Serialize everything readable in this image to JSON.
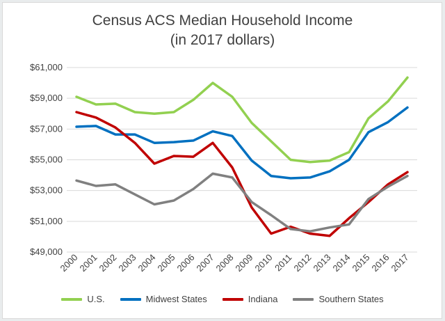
{
  "chart_data": {
    "type": "line",
    "title": "Census ACS Median Household Income",
    "subtitle": "(in 2017 dollars)",
    "xlabel": "",
    "ylabel": "",
    "categories": [
      "2000",
      "2001",
      "2002",
      "2003",
      "2004",
      "2005",
      "2006",
      "2007",
      "2008",
      "2009",
      "2010",
      "2011",
      "2012",
      "2013",
      "2014",
      "2015",
      "2016",
      "2017"
    ],
    "ylim": [
      49000,
      61000
    ],
    "yticks": [
      49000,
      51000,
      53000,
      55000,
      57000,
      59000,
      61000
    ],
    "ytick_labels": [
      "$49,000",
      "$51,000",
      "$53,000",
      "$55,000",
      "$57,000",
      "$59,000",
      "$61,000"
    ],
    "grid": true,
    "legend_position": "bottom",
    "series": [
      {
        "name": "U.S.",
        "color": "#92d050",
        "values": [
          59100,
          58600,
          58650,
          58100,
          58000,
          58100,
          58900,
          60000,
          59100,
          57400,
          56200,
          55000,
          54850,
          54950,
          55500,
          57700,
          58800,
          60350
        ]
      },
      {
        "name": "Midwest States",
        "color": "#0070c0",
        "values": [
          57150,
          57200,
          56650,
          56650,
          56100,
          56150,
          56250,
          56850,
          56550,
          54950,
          53950,
          53800,
          53850,
          54250,
          55000,
          56800,
          57450,
          58400
        ]
      },
      {
        "name": "Indiana",
        "color": "#c00000",
        "values": [
          58100,
          57750,
          57100,
          56100,
          54750,
          55250,
          55200,
          56100,
          54500,
          51900,
          50200,
          50650,
          50200,
          50050,
          51200,
          52250,
          53400,
          54200
        ]
      },
      {
        "name": "Southern States",
        "color": "#808080",
        "values": [
          53650,
          53300,
          53400,
          52750,
          52100,
          52350,
          53100,
          54100,
          53850,
          52250,
          51400,
          50500,
          50350,
          50600,
          50800,
          52450,
          53250,
          53950
        ]
      }
    ]
  }
}
